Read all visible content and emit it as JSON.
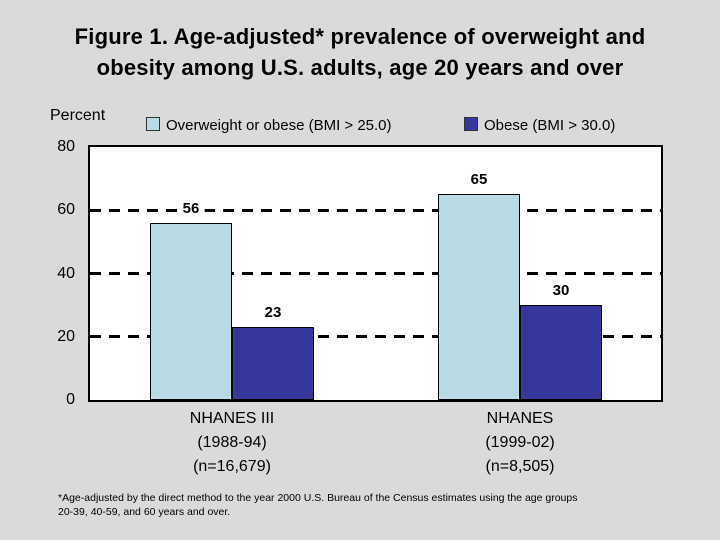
{
  "slide": {
    "title": "Figure 1. Age-adjusted* prevalence of overweight and\nobesity among U.S. adults, age 20 years and over",
    "footnote": "*Age-adjusted by the direct method to the year 2000 U.S. Bureau of the Census estimates using the age groups\n20-39, 40-59, and 60 years and over."
  },
  "chart_data": {
    "type": "bar",
    "title": "Figure 1. Age-adjusted* prevalence of overweight and obesity among U.S. adults, age 20 years and over",
    "xlabel": "",
    "ylabel": "Percent",
    "ylim": [
      0,
      80
    ],
    "yticks": [
      0,
      20,
      40,
      60,
      80
    ],
    "gridlines": [
      20,
      40,
      60
    ],
    "grid_style": "dashed",
    "grid_on": true,
    "legend_position": "top",
    "categories": [
      "NHANES III\n(1988-94)\n(n=16,679)",
      "NHANES\n(1999-02)\n(n=8,505)"
    ],
    "series": [
      {
        "name": "Overweight or obese (BMI > 25.0)",
        "color": "#b8dbe6",
        "values": [
          56,
          65
        ]
      },
      {
        "name": "Obese (BMI > 30.0)",
        "color": "#3638a0",
        "values": [
          23,
          30
        ]
      }
    ],
    "colors": {
      "slide_background": "#dbdadb",
      "plot_background": "#ffffff",
      "grid_color": "#000000",
      "text_color": "#000000"
    }
  }
}
